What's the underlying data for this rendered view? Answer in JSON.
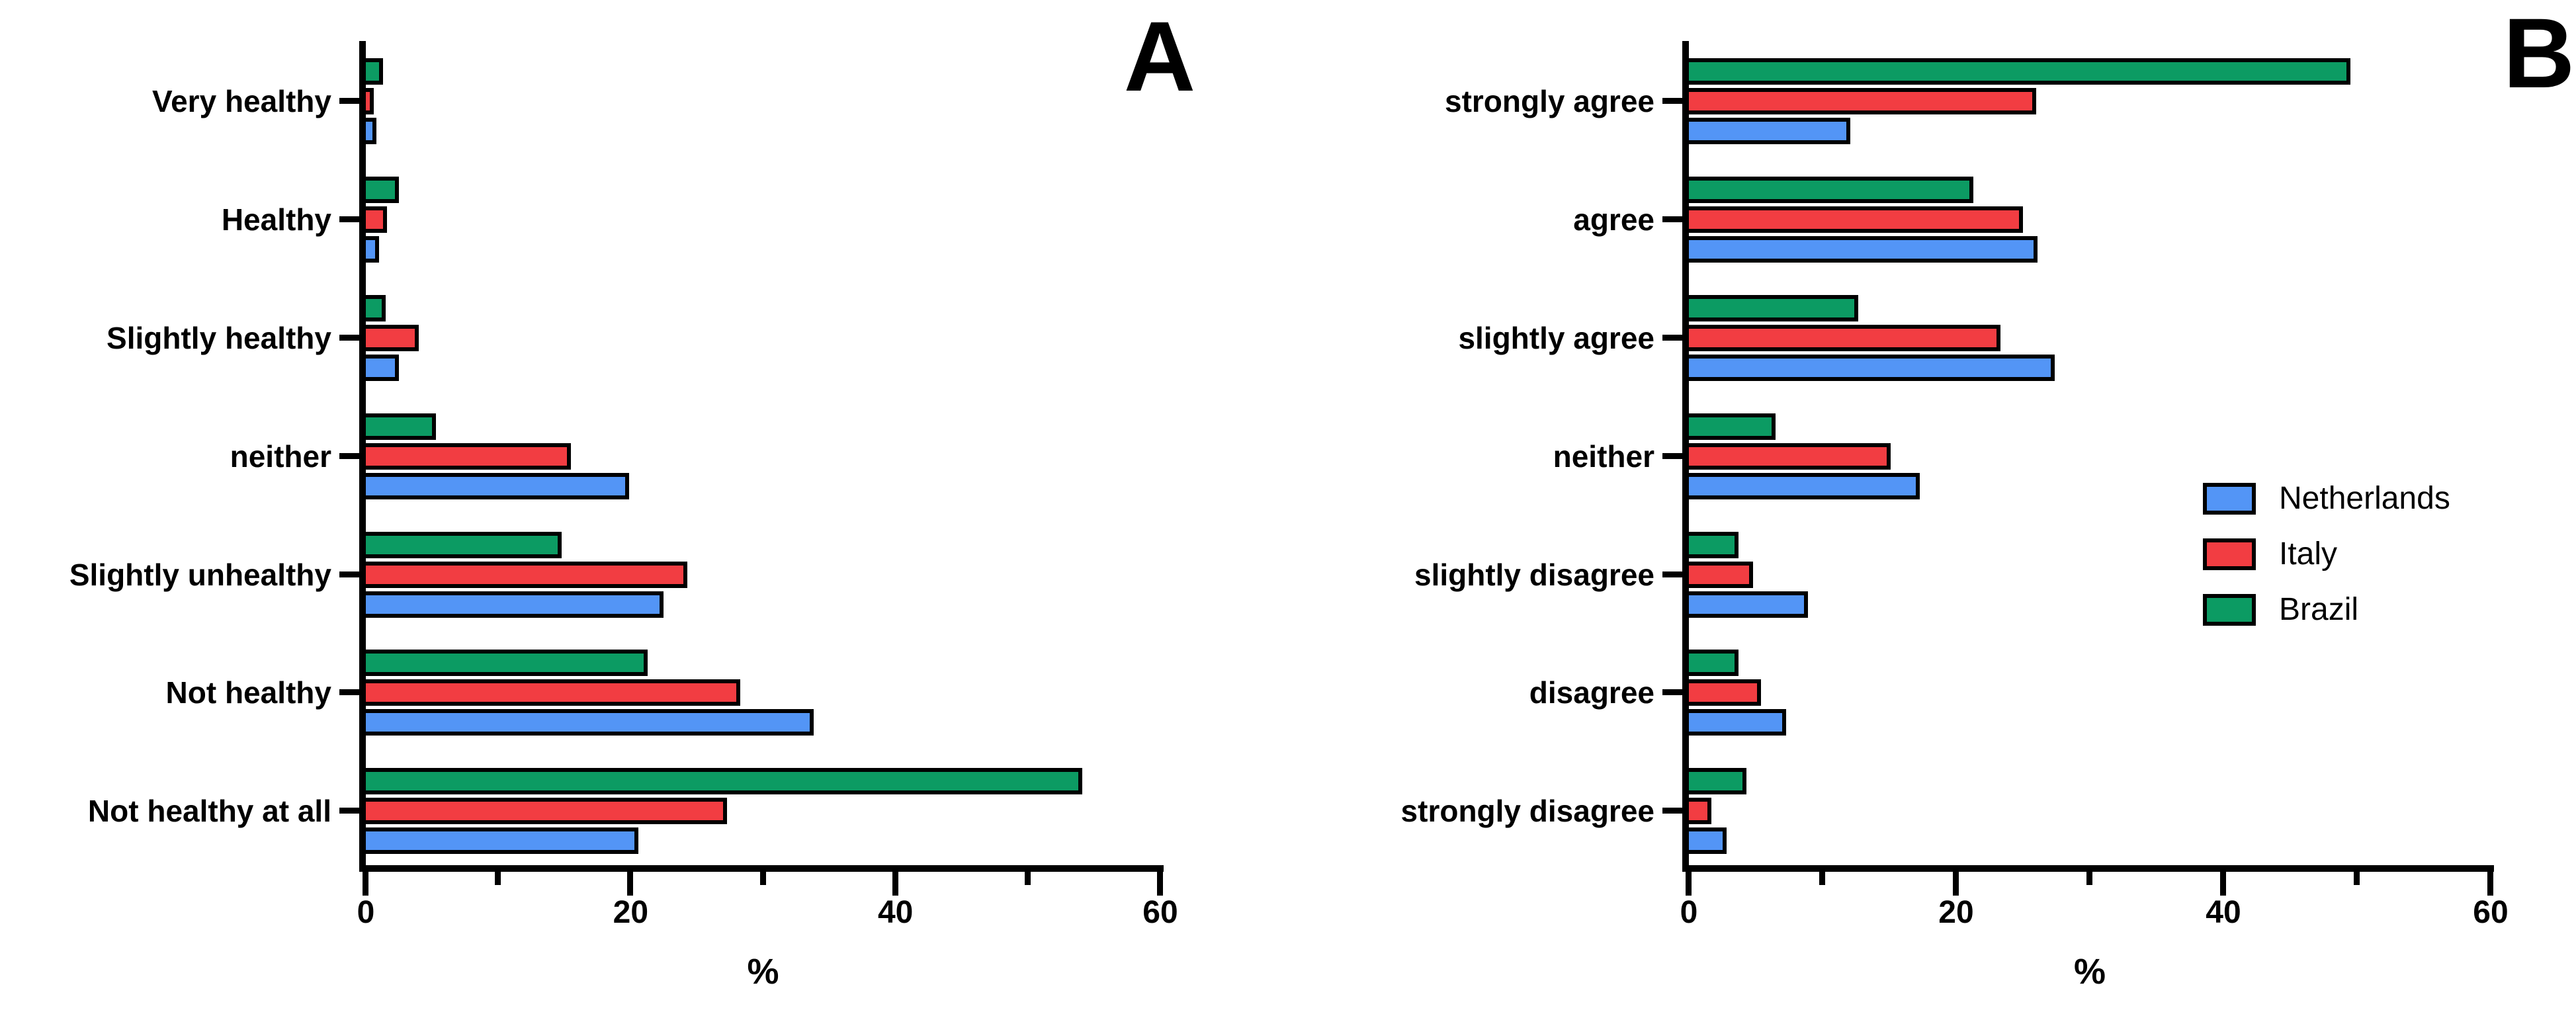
{
  "figure": {
    "background": "#ffffff",
    "panel_letters": [
      "A",
      "B"
    ]
  },
  "colors": {
    "netherlands": "#5395F6",
    "italy": "#F23D42",
    "brazil": "#0C9B63",
    "outline": "#000000"
  },
  "legend": {
    "items": [
      {
        "label": "Netherlands",
        "color": "#5395F6"
      },
      {
        "label": "Italy",
        "color": "#F23D42"
      },
      {
        "label": "Brazil",
        "color": "#0C9B63"
      }
    ],
    "position": "right of panel B, mid height"
  },
  "chart_data": [
    {
      "type": "bar",
      "orientation": "horizontal",
      "panel_label": "A",
      "categories": [
        "Very healthy",
        "Healthy",
        "Slightly healthy",
        "neither",
        "Slightly unhealthy",
        "Not healthy",
        "Not healthy at all"
      ],
      "series": [
        {
          "name": "Netherlands",
          "color": "#5395F6",
          "values": [
            0.5,
            0.7,
            2.2,
            19.6,
            22.2,
            33.5,
            20.3
          ]
        },
        {
          "name": "Italy",
          "color": "#F23D42",
          "values": [
            0.3,
            1.3,
            3.7,
            15.2,
            24.0,
            28.0,
            27.0
          ]
        },
        {
          "name": "Brazil",
          "color": "#0C9B63",
          "values": [
            1.0,
            2.2,
            1.2,
            5.0,
            14.5,
            21.0,
            53.8
          ]
        }
      ],
      "row_order_top_to_bottom": [
        "Brazil",
        "Italy",
        "Netherlands"
      ],
      "xlabel": "%",
      "xlim": [
        0,
        60
      ],
      "xticks": [
        0,
        20,
        40,
        60
      ],
      "xminorticks": [
        10,
        30,
        50
      ],
      "grid": "off"
    },
    {
      "type": "bar",
      "orientation": "horizontal",
      "panel_label": "B",
      "categories": [
        "strongly agree",
        "agree",
        "slightly agree",
        "neither",
        "slightly disagree",
        "disagree",
        "strongly disagree"
      ],
      "series": [
        {
          "name": "Netherlands",
          "color": "#5395F6",
          "values": [
            11.8,
            25.8,
            27.1,
            17.0,
            8.6,
            7.0,
            2.5
          ]
        },
        {
          "name": "Italy",
          "color": "#F23D42",
          "values": [
            25.7,
            24.7,
            23.0,
            14.8,
            4.5,
            5.1,
            1.4
          ]
        },
        {
          "name": "Brazil",
          "color": "#0C9B63",
          "values": [
            49.2,
            21.0,
            12.4,
            6.2,
            3.4,
            3.4,
            4.0
          ]
        }
      ],
      "row_order_top_to_bottom": [
        "Brazil",
        "Italy",
        "Netherlands"
      ],
      "xlabel": "%",
      "xlim": [
        0,
        60
      ],
      "xticks": [
        0,
        20,
        40,
        60
      ],
      "xminorticks": [
        10,
        30,
        50
      ],
      "grid": "off"
    }
  ]
}
